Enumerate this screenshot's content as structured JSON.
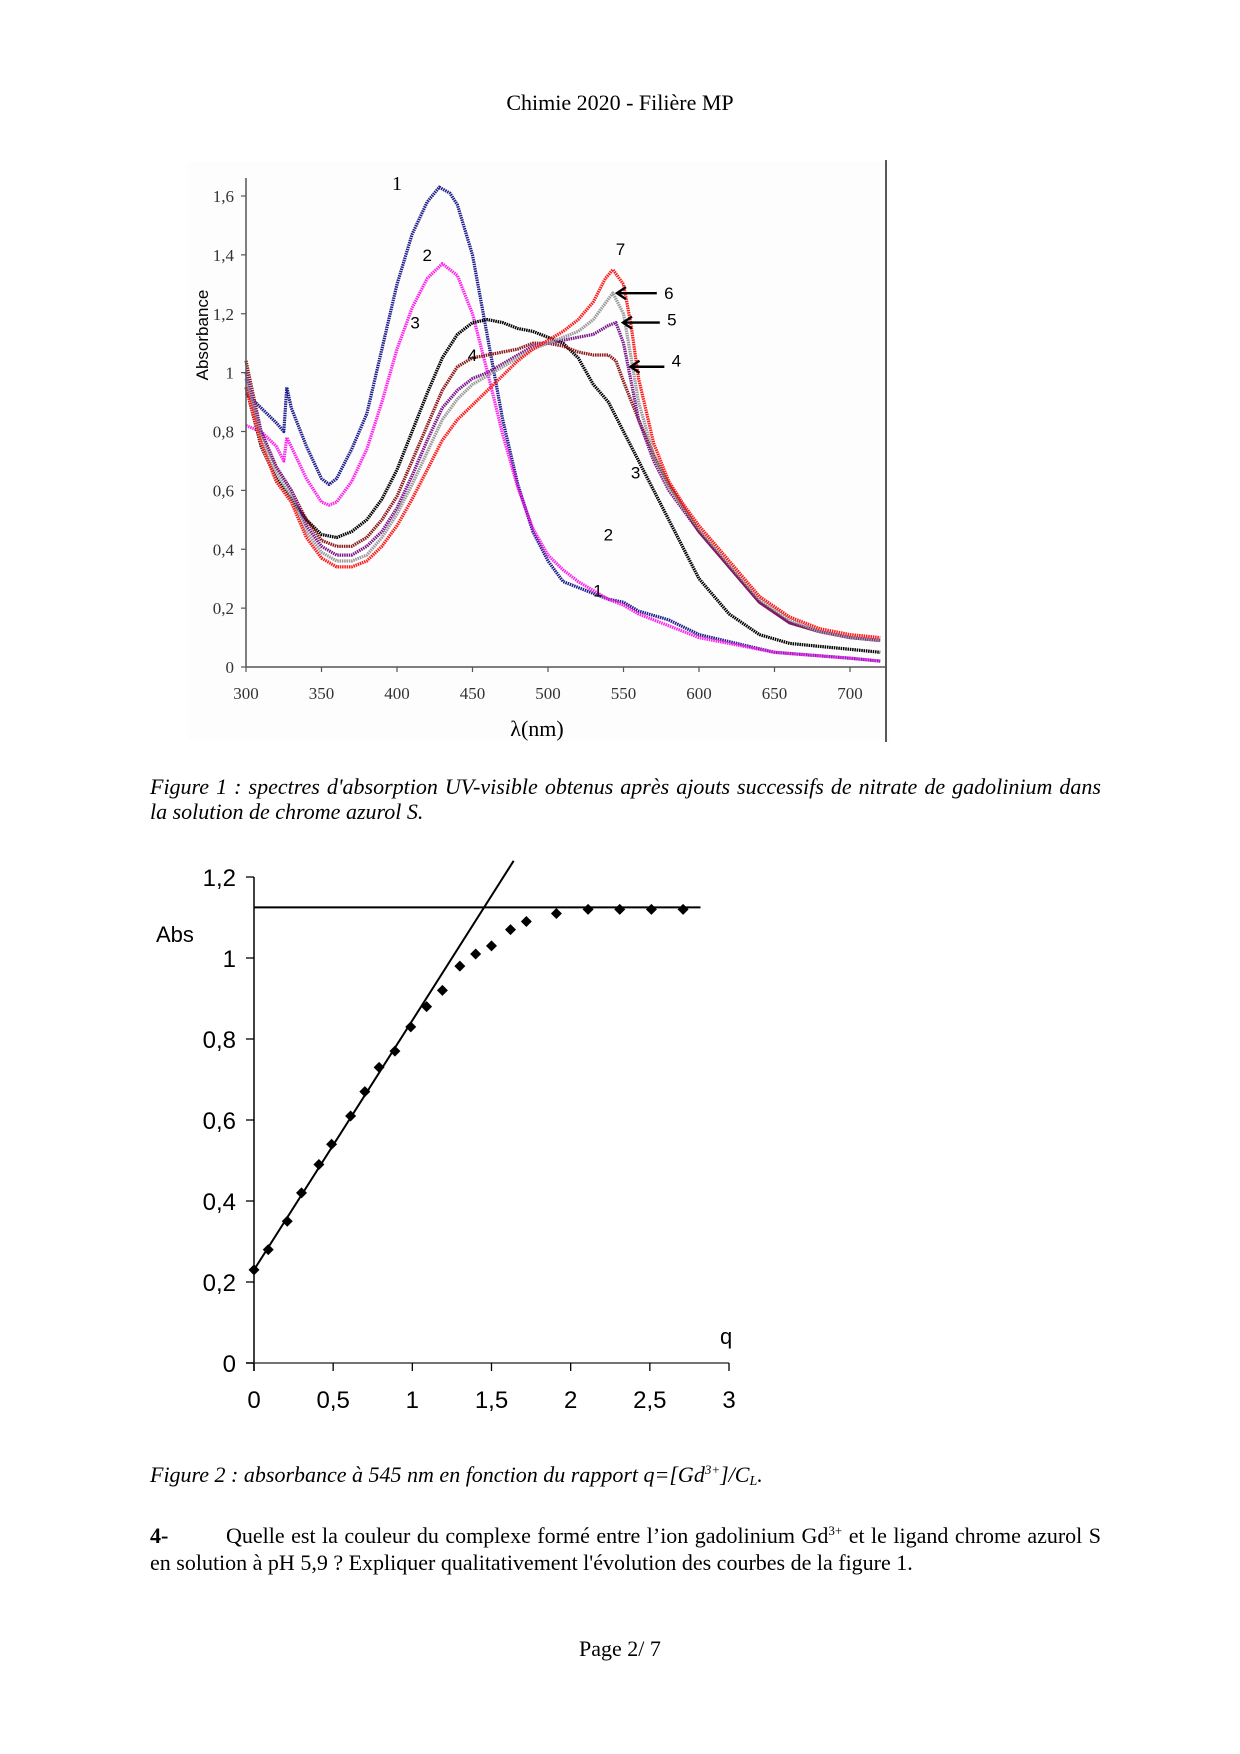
{
  "header": {
    "title": "Chimie 2020 - Filière MP"
  },
  "figure1": {
    "caption": "Figure 1 : spectres d'absorption UV-visible obtenus après ajouts successifs de nitrate de gadolinium dans la solution de chrome azurol S."
  },
  "figure2": {
    "caption_pre": "Figure 2 : absorbance à 545 nm en fonction du rapport q=[Gd",
    "caption_sup": "3+",
    "caption_mid": "]/C",
    "caption_sub": "L",
    "caption_post": "."
  },
  "question": {
    "number": "4-",
    "text_pre": "Quelle est la couleur du complexe formé entre l’ion gadolinium Gd",
    "text_sup": "3+",
    "text_post": " et le ligand chrome azurol S en solution à pH 5,9  ? Expliquer qualitativement l'évolution des courbes de la figure 1."
  },
  "footer": {
    "page": "Page 2/ 7"
  },
  "chart_data": [
    {
      "type": "line",
      "title": "",
      "xlabel": "λ(nm)",
      "ylabel": "Absorbance",
      "xlim": [
        300,
        720
      ],
      "ylim": [
        0,
        1.7
      ],
      "x_ticks": [
        300,
        350,
        400,
        450,
        500,
        550,
        600,
        650,
        700
      ],
      "x_tick_labels": [
        "300",
        "350",
        "400",
        "450",
        "500",
        "550",
        "600",
        "650",
        "700"
      ],
      "y_ticks": [
        0,
        0.2,
        0.4,
        0.6,
        0.8,
        1.0,
        1.2,
        1.4,
        1.6
      ],
      "y_tick_labels": [
        "0",
        "0,2",
        "0,4",
        "0,6",
        "0,8",
        "1",
        "1,2",
        "1,4",
        "1,6"
      ],
      "grid": false,
      "series": [
        {
          "name": "1",
          "color": "#1f1f8a",
          "x": [
            300,
            310,
            320,
            325,
            327,
            330,
            340,
            350,
            355,
            360,
            370,
            380,
            390,
            400,
            410,
            420,
            428,
            435,
            440,
            450,
            460,
            470,
            480,
            490,
            500,
            510,
            520,
            530,
            540,
            550,
            560,
            580,
            600,
            650,
            700,
            720
          ],
          "y": [
            0.93,
            0.88,
            0.83,
            0.8,
            0.95,
            0.88,
            0.75,
            0.64,
            0.62,
            0.64,
            0.74,
            0.86,
            1.08,
            1.3,
            1.47,
            1.58,
            1.63,
            1.61,
            1.57,
            1.4,
            1.12,
            0.84,
            0.62,
            0.46,
            0.36,
            0.29,
            0.27,
            0.25,
            0.23,
            0.22,
            0.19,
            0.16,
            0.11,
            0.05,
            0.03,
            0.02
          ]
        },
        {
          "name": "2",
          "color": "#ff22ee",
          "x": [
            300,
            310,
            320,
            325,
            327,
            340,
            350,
            355,
            360,
            370,
            380,
            390,
            400,
            410,
            420,
            430,
            440,
            450,
            460,
            470,
            480,
            490,
            500,
            510,
            520,
            530,
            540,
            550,
            560,
            580,
            600,
            650,
            700,
            720
          ],
          "y": [
            0.82,
            0.8,
            0.75,
            0.7,
            0.78,
            0.64,
            0.56,
            0.55,
            0.56,
            0.63,
            0.74,
            0.9,
            1.08,
            1.22,
            1.32,
            1.37,
            1.33,
            1.2,
            1.0,
            0.79,
            0.61,
            0.47,
            0.38,
            0.33,
            0.29,
            0.26,
            0.23,
            0.21,
            0.18,
            0.14,
            0.1,
            0.05,
            0.03,
            0.02
          ]
        },
        {
          "name": "3",
          "color": "#000000",
          "x": [
            300,
            310,
            320,
            330,
            340,
            350,
            360,
            370,
            380,
            390,
            400,
            410,
            420,
            430,
            440,
            450,
            460,
            470,
            480,
            490,
            500,
            510,
            520,
            530,
            540,
            550,
            560,
            570,
            580,
            590,
            600,
            620,
            640,
            660,
            680,
            700,
            720
          ],
          "y": [
            0.95,
            0.75,
            0.64,
            0.57,
            0.5,
            0.45,
            0.44,
            0.46,
            0.5,
            0.57,
            0.67,
            0.8,
            0.93,
            1.05,
            1.13,
            1.17,
            1.18,
            1.17,
            1.15,
            1.14,
            1.12,
            1.1,
            1.05,
            0.96,
            0.9,
            0.8,
            0.7,
            0.6,
            0.5,
            0.4,
            0.3,
            0.18,
            0.11,
            0.08,
            0.07,
            0.06,
            0.05
          ]
        },
        {
          "name": "4",
          "color": "#8b1a1a",
          "x": [
            300,
            310,
            320,
            330,
            340,
            350,
            360,
            370,
            380,
            390,
            400,
            410,
            420,
            430,
            440,
            450,
            460,
            470,
            480,
            490,
            500,
            510,
            520,
            530,
            540,
            545,
            550,
            560,
            570,
            580,
            590,
            600,
            620,
            640,
            660,
            680,
            700,
            720
          ],
          "y": [
            1.04,
            0.8,
            0.68,
            0.6,
            0.5,
            0.43,
            0.41,
            0.41,
            0.44,
            0.5,
            0.58,
            0.7,
            0.82,
            0.94,
            1.02,
            1.05,
            1.06,
            1.07,
            1.08,
            1.1,
            1.1,
            1.09,
            1.07,
            1.06,
            1.06,
            1.04,
            0.97,
            0.84,
            0.72,
            0.62,
            0.54,
            0.46,
            0.34,
            0.22,
            0.15,
            0.12,
            0.1,
            0.09
          ]
        },
        {
          "name": "5",
          "color": "#7a1a8a",
          "x": [
            300,
            310,
            320,
            330,
            340,
            350,
            360,
            370,
            380,
            390,
            400,
            410,
            420,
            430,
            440,
            450,
            460,
            470,
            480,
            490,
            500,
            510,
            520,
            530,
            540,
            545,
            550,
            555,
            560,
            570,
            580,
            590,
            600,
            620,
            640,
            660,
            680,
            700,
            720
          ],
          "y": [
            1.0,
            0.8,
            0.68,
            0.6,
            0.48,
            0.41,
            0.38,
            0.38,
            0.41,
            0.46,
            0.54,
            0.65,
            0.77,
            0.88,
            0.94,
            0.98,
            1.0,
            1.03,
            1.06,
            1.09,
            1.1,
            1.11,
            1.12,
            1.13,
            1.16,
            1.17,
            1.1,
            0.97,
            0.84,
            0.7,
            0.6,
            0.53,
            0.46,
            0.34,
            0.22,
            0.15,
            0.12,
            0.1,
            0.09
          ]
        },
        {
          "name": "6",
          "color": "#999999",
          "x": [
            300,
            310,
            320,
            330,
            340,
            350,
            360,
            370,
            380,
            390,
            400,
            410,
            420,
            430,
            440,
            450,
            460,
            470,
            480,
            490,
            500,
            510,
            520,
            530,
            540,
            543,
            550,
            555,
            560,
            570,
            580,
            590,
            600,
            620,
            640,
            660,
            680,
            700,
            720
          ],
          "y": [
            0.98,
            0.78,
            0.66,
            0.58,
            0.46,
            0.39,
            0.36,
            0.36,
            0.38,
            0.44,
            0.52,
            0.62,
            0.73,
            0.84,
            0.91,
            0.96,
            0.99,
            1.02,
            1.05,
            1.08,
            1.1,
            1.12,
            1.14,
            1.18,
            1.25,
            1.27,
            1.2,
            1.05,
            0.9,
            0.72,
            0.61,
            0.54,
            0.47,
            0.35,
            0.23,
            0.16,
            0.12,
            0.1,
            0.09
          ]
        },
        {
          "name": "7",
          "color": "#ff1a1a",
          "x": [
            300,
            310,
            320,
            330,
            340,
            350,
            360,
            370,
            380,
            390,
            400,
            410,
            420,
            430,
            440,
            450,
            460,
            470,
            480,
            490,
            500,
            510,
            520,
            530,
            538,
            543,
            550,
            555,
            560,
            570,
            580,
            590,
            600,
            620,
            640,
            660,
            680,
            700,
            720
          ],
          "y": [
            0.95,
            0.76,
            0.63,
            0.56,
            0.44,
            0.37,
            0.34,
            0.34,
            0.36,
            0.41,
            0.48,
            0.57,
            0.67,
            0.77,
            0.84,
            0.89,
            0.94,
            0.99,
            1.04,
            1.08,
            1.11,
            1.14,
            1.18,
            1.24,
            1.32,
            1.35,
            1.3,
            1.16,
            0.98,
            0.76,
            0.63,
            0.55,
            0.48,
            0.36,
            0.24,
            0.17,
            0.13,
            0.11,
            0.1
          ]
        }
      ],
      "annotations": [
        {
          "text": "1",
          "x": 400,
          "y": 1.62
        },
        {
          "text": "2",
          "x": 420,
          "y": 1.38
        },
        {
          "text": "3",
          "x": 412,
          "y": 1.15
        },
        {
          "text": "4",
          "x": 450,
          "y": 1.04
        },
        {
          "text": "7",
          "x": 548,
          "y": 1.4
        },
        {
          "text": "6",
          "x": 580,
          "y": 1.25,
          "arrow_to": [
            543,
            1.27
          ]
        },
        {
          "text": "5",
          "x": 582,
          "y": 1.16,
          "arrow_to": [
            547,
            1.17
          ]
        },
        {
          "text": "4",
          "x": 585,
          "y": 1.02,
          "arrow_to": [
            552,
            1.02
          ]
        },
        {
          "text": "3",
          "x": 558,
          "y": 0.64
        },
        {
          "text": "2",
          "x": 540,
          "y": 0.43
        },
        {
          "text": "1",
          "x": 533,
          "y": 0.24
        }
      ]
    },
    {
      "type": "scatter",
      "title": "",
      "xlabel": "q",
      "ylabel": "Abs",
      "xlim": [
        0,
        3
      ],
      "ylim": [
        0,
        1.2
      ],
      "x_ticks": [
        0,
        0.5,
        1,
        1.5,
        2,
        2.5,
        3
      ],
      "x_tick_labels": [
        "0",
        "0,5",
        "1",
        "1,5",
        "2",
        "2,5",
        "3"
      ],
      "y_ticks": [
        0,
        0.2,
        0.4,
        0.6,
        0.8,
        1.0,
        1.2
      ],
      "y_tick_labels": [
        "0",
        "0,2",
        "0,4",
        "0,6",
        "0,8",
        "1",
        "1,2"
      ],
      "grid": false,
      "marker": "diamond",
      "x": [
        0,
        0.09,
        0.21,
        0.3,
        0.41,
        0.49,
        0.61,
        0.7,
        0.79,
        0.89,
        0.99,
        1.09,
        1.19,
        1.3,
        1.4,
        1.5,
        1.62,
        1.72,
        1.91,
        2.11,
        2.31,
        2.51,
        2.71
      ],
      "y": [
        0.23,
        0.28,
        0.35,
        0.42,
        0.49,
        0.54,
        0.61,
        0.67,
        0.73,
        0.77,
        0.83,
        0.88,
        0.92,
        0.98,
        1.01,
        1.03,
        1.07,
        1.09,
        1.11,
        1.12,
        1.12,
        1.12,
        1.12
      ],
      "fit_lines": [
        {
          "name": "initial-slope",
          "x": [
            0,
            1.64
          ],
          "y": [
            0.23,
            1.24
          ]
        },
        {
          "name": "plateau",
          "x": [
            0,
            2.82
          ],
          "y": [
            1.125,
            1.125
          ]
        }
      ]
    }
  ]
}
